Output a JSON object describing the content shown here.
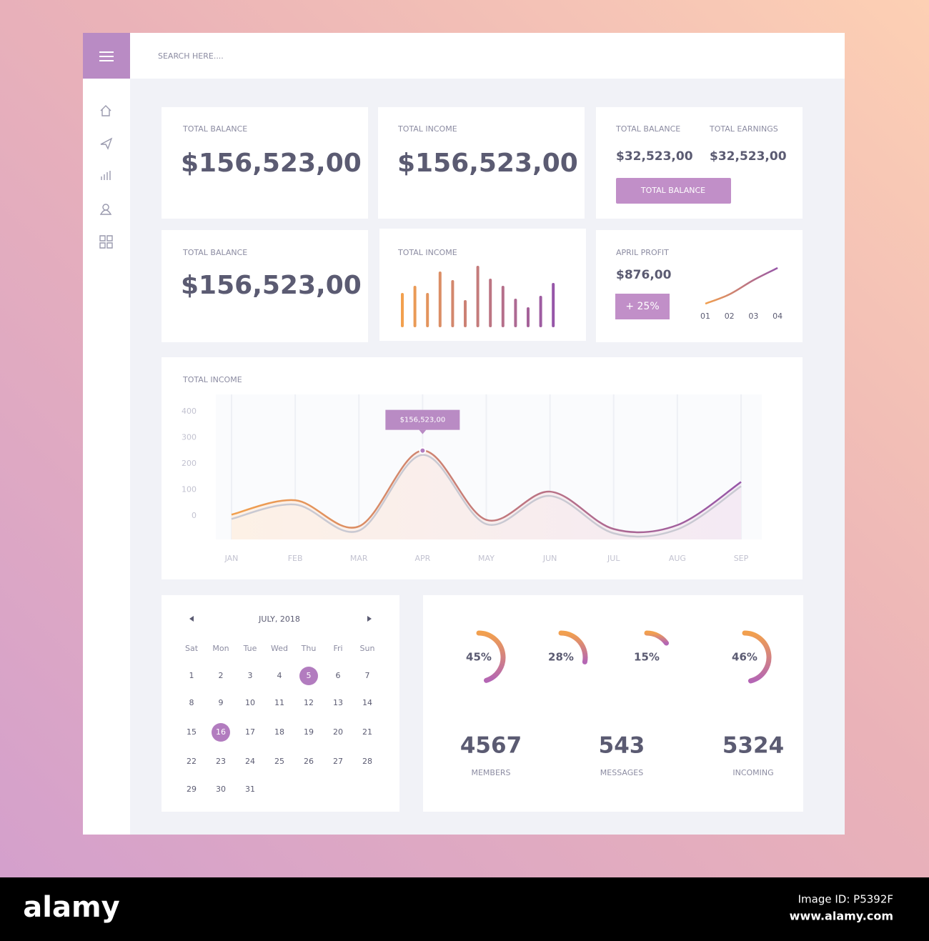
{
  "search_placeholder": "SEARCH HERE....",
  "cards": [
    {
      "label": "TOTAL BALANCE",
      "value": "$156,523,00"
    },
    {
      "label": "TOTAL INCOME",
      "value": "$156,523,00"
    },
    {
      "label": "TOTAL BALANCE",
      "value": "$156,523,00"
    }
  ],
  "summary": {
    "items": [
      {
        "label": "TOTAL BALANCE",
        "value": "$32,523,00"
      },
      {
        "label": "TOTAL EARNINGS",
        "value": "$32,523,00"
      }
    ],
    "button": "TOTAL BALANCE"
  },
  "income_bars": {
    "label": "TOTAL INCOME",
    "values": [
      48,
      58,
      48,
      78,
      66,
      38,
      86,
      68,
      58,
      40,
      28,
      44,
      62
    ],
    "colors": [
      "#f2a04e",
      "#9656a8"
    ]
  },
  "profit": {
    "label": "APRIL PROFIT",
    "value": "$876,00",
    "change": "+ 25%",
    "categories": [
      "01",
      "02",
      "03",
      "04"
    ],
    "values": [
      5,
      18,
      38,
      55
    ],
    "color": "#b070b8"
  },
  "chart_data": {
    "type": "line",
    "title": "TOTAL INCOME",
    "categories": [
      "JAN",
      "FEB",
      "MAR",
      "APR",
      "MAY",
      "JUN",
      "JUL",
      "AUG",
      "SEP"
    ],
    "values": [
      5,
      60,
      -40,
      250,
      -15,
      93,
      -50,
      -35,
      130
    ],
    "ylim": [
      -90,
      465
    ],
    "yticks": [
      0,
      100,
      200,
      300,
      400
    ],
    "annotation": "$156,523,00",
    "colors": [
      "#f2a04e",
      "#9656a8"
    ],
    "grid": true
  },
  "calendar": {
    "month": "JULY, 2018",
    "weekdays": [
      "Sat",
      "Mon",
      "Tue",
      "Wed",
      "Thu",
      "Fri",
      "Sun"
    ],
    "days": [
      1,
      2,
      3,
      4,
      5,
      6,
      7,
      8,
      9,
      10,
      11,
      12,
      13,
      14,
      15,
      16,
      17,
      18,
      19,
      20,
      21,
      22,
      23,
      24,
      25,
      26,
      27,
      28,
      29,
      30,
      31
    ],
    "selected": [
      5,
      16
    ]
  },
  "rings": {
    "values": [
      45,
      28,
      15,
      46
    ],
    "value_labels": [
      "45%",
      "28%",
      "15%",
      "46%"
    ]
  },
  "counters": [
    {
      "value": 4567,
      "label": "MEMBERS"
    },
    {
      "value": 543,
      "label": "MESSAGES"
    },
    {
      "value": 5324,
      "label": "INCOMING"
    }
  ],
  "footer": {
    "brand": "alamy",
    "image_id": "Image ID: P5392F",
    "url": "www.alamy.com"
  }
}
